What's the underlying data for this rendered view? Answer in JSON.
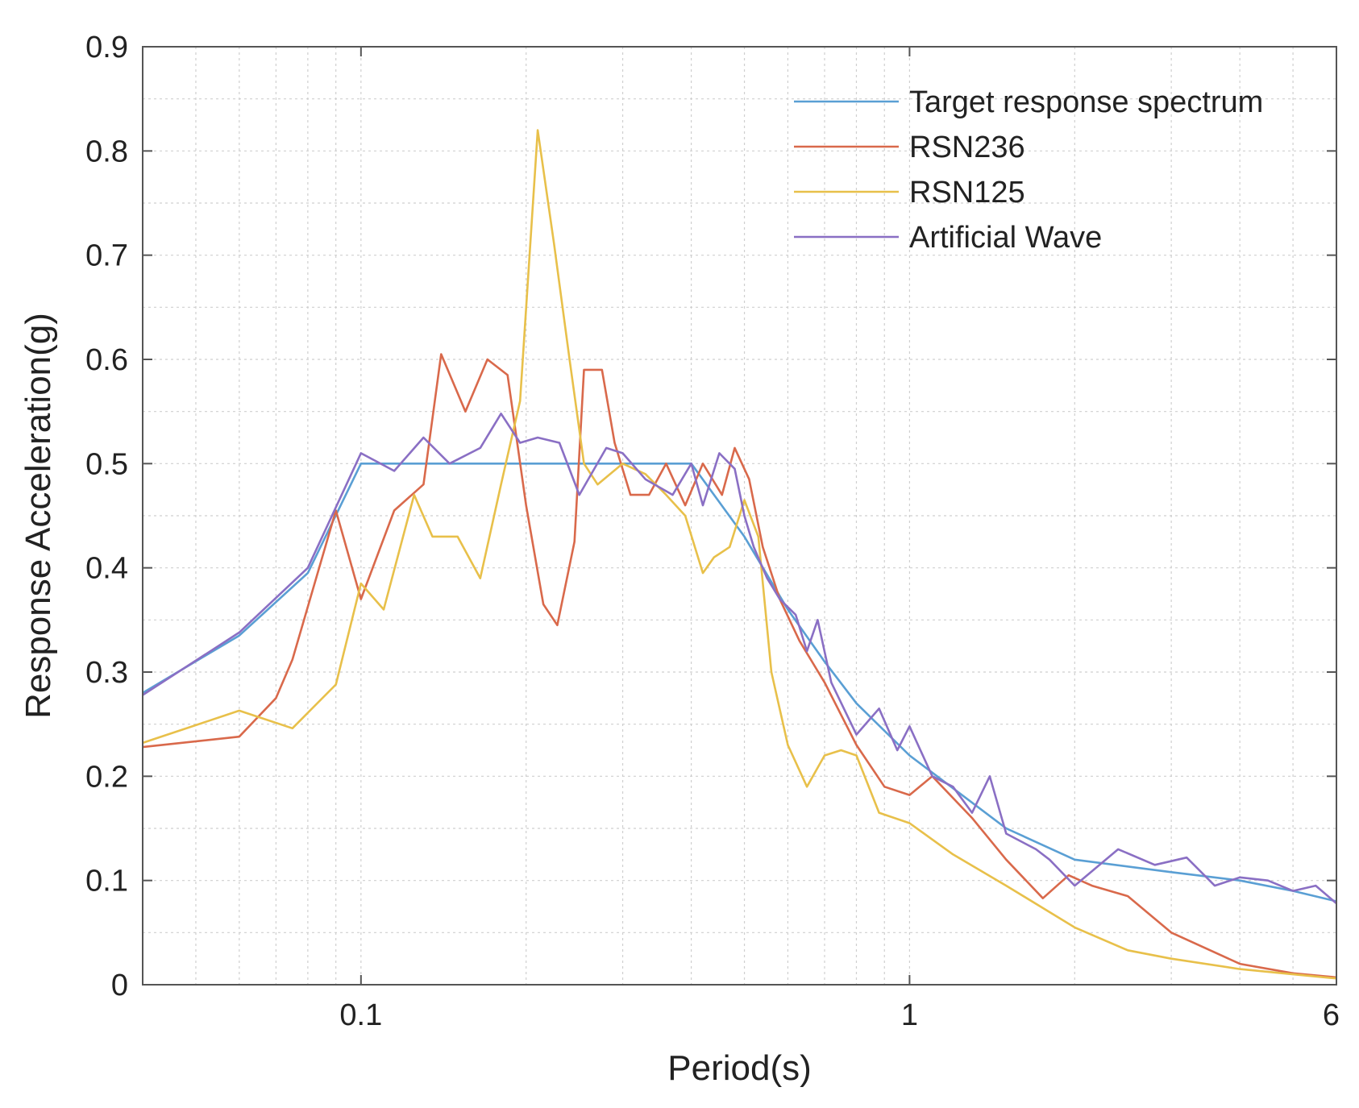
{
  "chart_data": {
    "type": "line",
    "title": "",
    "xlabel": "Period(s)",
    "ylabel": "Response Acceleration(g)",
    "xscale": "log",
    "xlim": [
      0.04,
      6
    ],
    "ylim": [
      0,
      0.9
    ],
    "x_ticks": [
      {
        "value": 0.1,
        "label": "0.1"
      },
      {
        "value": 1,
        "label": "1"
      },
      {
        "value": 6,
        "label": "6"
      }
    ],
    "y_ticks": [
      {
        "value": 0,
        "label": "0"
      },
      {
        "value": 0.1,
        "label": "0.1"
      },
      {
        "value": 0.2,
        "label": "0.2"
      },
      {
        "value": 0.3,
        "label": "0.3"
      },
      {
        "value": 0.4,
        "label": "0.4"
      },
      {
        "value": 0.5,
        "label": "0.5"
      },
      {
        "value": 0.6,
        "label": "0.6"
      },
      {
        "value": 0.7,
        "label": "0.7"
      },
      {
        "value": 0.8,
        "label": "0.8"
      },
      {
        "value": 0.9,
        "label": "0.9"
      }
    ],
    "grid": true,
    "legend_position": "top-right",
    "series": [
      {
        "name": "Target response spectrum",
        "color": "#5a9fd4",
        "points": [
          [
            0.04,
            0.28
          ],
          [
            0.06,
            0.335
          ],
          [
            0.08,
            0.395
          ],
          [
            0.1,
            0.5
          ],
          [
            0.4,
            0.5
          ],
          [
            0.5,
            0.43
          ],
          [
            0.6,
            0.36
          ],
          [
            0.7,
            0.31
          ],
          [
            0.8,
            0.27
          ],
          [
            1.0,
            0.22
          ],
          [
            1.5,
            0.15
          ],
          [
            2.0,
            0.12
          ],
          [
            3.0,
            0.108
          ],
          [
            4.0,
            0.1
          ],
          [
            5.0,
            0.09
          ],
          [
            6.0,
            0.08
          ]
        ]
      },
      {
        "name": "RSN236",
        "color": "#d9694b",
        "points": [
          [
            0.04,
            0.228
          ],
          [
            0.06,
            0.238
          ],
          [
            0.07,
            0.275
          ],
          [
            0.075,
            0.312
          ],
          [
            0.09,
            0.455
          ],
          [
            0.1,
            0.37
          ],
          [
            0.115,
            0.455
          ],
          [
            0.13,
            0.48
          ],
          [
            0.14,
            0.605
          ],
          [
            0.155,
            0.55
          ],
          [
            0.17,
            0.6
          ],
          [
            0.185,
            0.585
          ],
          [
            0.2,
            0.46
          ],
          [
            0.215,
            0.365
          ],
          [
            0.228,
            0.345
          ],
          [
            0.245,
            0.425
          ],
          [
            0.255,
            0.59
          ],
          [
            0.275,
            0.59
          ],
          [
            0.29,
            0.52
          ],
          [
            0.31,
            0.47
          ],
          [
            0.335,
            0.47
          ],
          [
            0.36,
            0.5
          ],
          [
            0.39,
            0.46
          ],
          [
            0.42,
            0.5
          ],
          [
            0.455,
            0.47
          ],
          [
            0.48,
            0.515
          ],
          [
            0.51,
            0.485
          ],
          [
            0.54,
            0.42
          ],
          [
            0.58,
            0.37
          ],
          [
            0.63,
            0.33
          ],
          [
            0.7,
            0.29
          ],
          [
            0.8,
            0.23
          ],
          [
            0.9,
            0.19
          ],
          [
            1.0,
            0.182
          ],
          [
            1.1,
            0.2
          ],
          [
            1.3,
            0.16
          ],
          [
            1.5,
            0.12
          ],
          [
            1.75,
            0.083
          ],
          [
            1.95,
            0.105
          ],
          [
            2.15,
            0.095
          ],
          [
            2.5,
            0.085
          ],
          [
            3.0,
            0.05
          ],
          [
            4.0,
            0.02
          ],
          [
            5.0,
            0.011
          ],
          [
            6.0,
            0.007
          ]
        ]
      },
      {
        "name": "RSN125",
        "color": "#e8c04a",
        "points": [
          [
            0.04,
            0.232
          ],
          [
            0.06,
            0.263
          ],
          [
            0.075,
            0.246
          ],
          [
            0.09,
            0.288
          ],
          [
            0.1,
            0.385
          ],
          [
            0.11,
            0.36
          ],
          [
            0.125,
            0.47
          ],
          [
            0.135,
            0.43
          ],
          [
            0.15,
            0.43
          ],
          [
            0.165,
            0.39
          ],
          [
            0.18,
            0.48
          ],
          [
            0.195,
            0.56
          ],
          [
            0.21,
            0.82
          ],
          [
            0.225,
            0.71
          ],
          [
            0.24,
            0.6
          ],
          [
            0.255,
            0.5
          ],
          [
            0.27,
            0.48
          ],
          [
            0.3,
            0.5
          ],
          [
            0.33,
            0.49
          ],
          [
            0.36,
            0.47
          ],
          [
            0.39,
            0.45
          ],
          [
            0.42,
            0.395
          ],
          [
            0.44,
            0.41
          ],
          [
            0.47,
            0.42
          ],
          [
            0.5,
            0.465
          ],
          [
            0.53,
            0.43
          ],
          [
            0.56,
            0.3
          ],
          [
            0.6,
            0.23
          ],
          [
            0.65,
            0.19
          ],
          [
            0.7,
            0.22
          ],
          [
            0.75,
            0.225
          ],
          [
            0.8,
            0.22
          ],
          [
            0.88,
            0.165
          ],
          [
            1.0,
            0.155
          ],
          [
            1.2,
            0.125
          ],
          [
            1.5,
            0.095
          ],
          [
            2.0,
            0.055
          ],
          [
            2.5,
            0.033
          ],
          [
            3.0,
            0.025
          ],
          [
            4.0,
            0.015
          ],
          [
            5.0,
            0.01
          ],
          [
            6.0,
            0.006
          ]
        ]
      },
      {
        "name": "Artificial Wave",
        "color": "#8a6fc4",
        "points": [
          [
            0.04,
            0.278
          ],
          [
            0.06,
            0.338
          ],
          [
            0.08,
            0.4
          ],
          [
            0.1,
            0.51
          ],
          [
            0.115,
            0.493
          ],
          [
            0.13,
            0.525
          ],
          [
            0.145,
            0.5
          ],
          [
            0.165,
            0.515
          ],
          [
            0.18,
            0.548
          ],
          [
            0.195,
            0.52
          ],
          [
            0.21,
            0.525
          ],
          [
            0.23,
            0.52
          ],
          [
            0.25,
            0.47
          ],
          [
            0.28,
            0.515
          ],
          [
            0.3,
            0.51
          ],
          [
            0.33,
            0.485
          ],
          [
            0.37,
            0.47
          ],
          [
            0.4,
            0.5
          ],
          [
            0.42,
            0.46
          ],
          [
            0.45,
            0.51
          ],
          [
            0.48,
            0.495
          ],
          [
            0.5,
            0.45
          ],
          [
            0.52,
            0.42
          ],
          [
            0.55,
            0.39
          ],
          [
            0.58,
            0.37
          ],
          [
            0.62,
            0.355
          ],
          [
            0.65,
            0.32
          ],
          [
            0.68,
            0.35
          ],
          [
            0.72,
            0.29
          ],
          [
            0.8,
            0.24
          ],
          [
            0.88,
            0.265
          ],
          [
            0.95,
            0.225
          ],
          [
            1.0,
            0.248
          ],
          [
            1.1,
            0.2
          ],
          [
            1.2,
            0.19
          ],
          [
            1.3,
            0.165
          ],
          [
            1.4,
            0.2
          ],
          [
            1.5,
            0.145
          ],
          [
            1.7,
            0.13
          ],
          [
            1.8,
            0.12
          ],
          [
            2.0,
            0.095
          ],
          [
            2.4,
            0.13
          ],
          [
            2.8,
            0.115
          ],
          [
            3.2,
            0.122
          ],
          [
            3.6,
            0.095
          ],
          [
            4.0,
            0.103
          ],
          [
            4.5,
            0.1
          ],
          [
            5.0,
            0.09
          ],
          [
            5.5,
            0.095
          ],
          [
            6.0,
            0.078
          ]
        ]
      }
    ]
  }
}
